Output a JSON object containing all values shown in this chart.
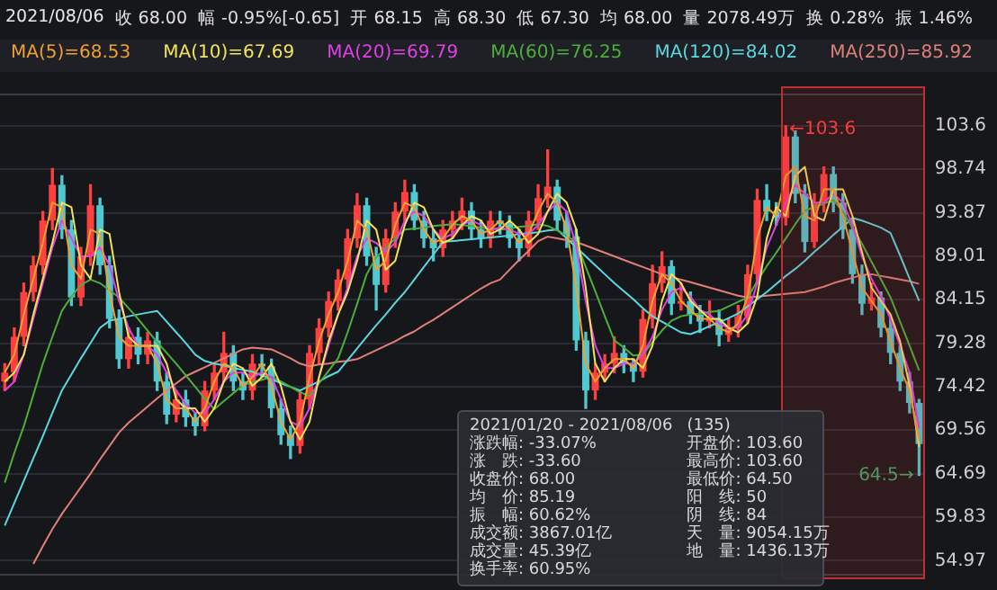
{
  "chart_data": {
    "type": "candlestick",
    "title": "2021/08/06",
    "subtitle": "收 68.00  幅 -0.95%[-0.65]  开 68.15  高 68.30  低 67.30  均 68.00  量 2078.49万  换 0.28%  振 1.46%",
    "categories": [
      null,
      null,
      null,
      null,
      null,
      null,
      null,
      null,
      null,
      null,
      null,
      null,
      null,
      null,
      null,
      null,
      null,
      null,
      null,
      null,
      null,
      null,
      null,
      null,
      null,
      null,
      null,
      null,
      null,
      null,
      null,
      null,
      null,
      null,
      null,
      null,
      null,
      null,
      null,
      null,
      null,
      null,
      null,
      null,
      null,
      null,
      null,
      null,
      null,
      null,
      null,
      null,
      null,
      null,
      null,
      null,
      null,
      null,
      null,
      null,
      null,
      null,
      null,
      null,
      null,
      null,
      null,
      null,
      null,
      null,
      null,
      null,
      null,
      null,
      null,
      null,
      null,
      null,
      null,
      null,
      null,
      null,
      null,
      null,
      null,
      null,
      null,
      null,
      null,
      null,
      null,
      null,
      null,
      null,
      null,
      null,
      null
    ],
    "ohlc": [
      [
        75,
        77,
        74,
        76
      ],
      [
        76,
        81,
        75,
        80
      ],
      [
        80,
        86,
        79,
        85
      ],
      [
        85,
        89,
        84,
        88
      ],
      [
        88,
        94,
        87,
        93
      ],
      [
        93,
        98.8,
        92,
        97
      ],
      [
        97,
        98,
        91,
        92
      ],
      [
        92,
        93,
        83.5,
        84.4
      ],
      [
        84.4,
        90,
        83.5,
        89
      ],
      [
        89,
        97,
        88,
        94.7
      ],
      [
        94.7,
        95.5,
        87,
        88
      ],
      [
        88,
        89,
        81,
        82
      ],
      [
        82,
        83,
        76.5,
        77.5
      ],
      [
        77.5,
        81,
        76.5,
        80
      ],
      [
        80,
        81,
        77,
        78
      ],
      [
        78,
        80.5,
        77,
        79.6
      ],
      [
        79.6,
        80.5,
        74,
        75
      ],
      [
        75,
        76,
        70.3,
        71.3
      ],
      [
        71.3,
        74,
        70.5,
        73
      ],
      [
        73,
        74,
        70,
        71
      ],
      [
        71,
        71.5,
        69,
        70
      ],
      [
        70,
        75,
        69.5,
        74
      ],
      [
        74,
        77,
        73,
        76
      ],
      [
        76,
        80.5,
        75,
        78.2
      ],
      [
        78.2,
        79,
        74,
        75
      ],
      [
        75,
        76,
        73,
        74
      ],
      [
        74,
        78,
        73,
        77
      ],
      [
        77,
        78,
        75.5,
        76.7
      ],
      [
        76.7,
        77.5,
        71,
        72
      ],
      [
        72,
        73,
        68,
        69
      ],
      [
        69,
        70,
        66.4,
        67.8
      ],
      [
        67.8,
        74,
        67,
        73
      ],
      [
        73,
        79,
        72,
        78.2
      ],
      [
        78.2,
        82,
        77,
        81
      ],
      [
        81,
        85,
        80,
        84
      ],
      [
        84,
        87.5,
        83,
        86.4
      ],
      [
        86.4,
        92,
        85.5,
        91
      ],
      [
        91,
        96,
        90,
        94.7
      ],
      [
        94.7,
        95.5,
        88,
        89
      ],
      [
        89,
        90,
        83,
        85.8
      ],
      [
        85.8,
        92,
        85,
        91
      ],
      [
        91,
        95,
        90,
        94
      ],
      [
        94,
        97.5,
        93,
        96.2
      ],
      [
        96.2,
        97,
        92,
        93
      ],
      [
        93,
        94,
        90,
        91
      ],
      [
        91,
        92,
        88.5,
        89.9
      ],
      [
        89.9,
        93,
        89,
        92
      ],
      [
        92,
        94,
        91,
        93
      ],
      [
        93,
        95.5,
        92,
        94.1
      ],
      [
        94.1,
        95,
        91,
        92
      ],
      [
        92,
        93,
        90,
        91
      ],
      [
        91,
        94,
        90,
        93
      ],
      [
        93,
        94,
        91.5,
        92.6
      ],
      [
        92.6,
        93.5,
        90,
        91
      ],
      [
        91,
        92,
        88.5,
        89.9
      ],
      [
        89.9,
        94,
        89,
        93
      ],
      [
        93,
        97,
        92,
        95.5
      ],
      [
        95.5,
        100.9,
        94.5,
        96.8
      ],
      [
        96.8,
        97.5,
        92,
        93
      ],
      [
        93,
        94,
        90,
        91.2
      ],
      [
        91.2,
        92,
        78.5,
        79.6
      ],
      [
        79.6,
        80.5,
        72,
        74
      ],
      [
        74,
        77,
        73,
        76
      ],
      [
        76,
        78,
        75,
        77
      ],
      [
        77,
        80,
        76,
        78.2
      ],
      [
        78.2,
        79,
        76,
        77
      ],
      [
        77,
        77.5,
        75,
        76.1
      ],
      [
        76.1,
        83,
        75.5,
        82
      ],
      [
        82,
        88,
        81,
        86
      ],
      [
        86,
        89.5,
        85,
        87.9
      ],
      [
        87.9,
        88.5,
        82.5,
        83.7
      ],
      [
        83.7,
        86,
        83,
        84
      ],
      [
        84,
        85,
        81.5,
        82.5
      ],
      [
        82.5,
        83.5,
        80.5,
        81.7
      ],
      [
        81.7,
        84,
        81,
        82
      ],
      [
        82,
        83,
        79,
        80.2
      ],
      [
        80.2,
        82,
        79.5,
        81
      ],
      [
        81,
        83.5,
        80,
        82.3
      ],
      [
        82.3,
        88,
        81.5,
        87
      ],
      [
        87,
        96.5,
        86,
        95.3
      ],
      [
        95.3,
        97,
        93,
        94
      ],
      [
        94,
        95,
        92.5,
        93.3
      ],
      [
        93.3,
        103.6,
        92.5,
        102.4
      ],
      [
        102.4,
        103,
        95,
        96
      ],
      [
        96,
        97,
        89.5,
        90.6
      ],
      [
        90.6,
        96,
        90,
        95
      ],
      [
        95,
        99,
        94,
        98.2
      ],
      [
        98.2,
        99,
        94,
        95
      ],
      [
        95,
        96,
        91,
        92
      ],
      [
        92,
        93,
        86,
        87
      ],
      [
        87,
        88,
        82.5,
        83.7
      ],
      [
        83.7,
        86,
        83,
        84.4
      ],
      [
        84.4,
        85,
        80,
        81
      ],
      [
        81,
        82,
        77,
        78.2
      ],
      [
        78.2,
        79,
        74,
        75
      ],
      [
        75,
        76,
        71.5,
        72.6
      ],
      [
        72.6,
        73,
        64.5,
        68
      ]
    ],
    "colors": [
      "#ff4040",
      "#ff4040",
      "#ff4040",
      "#ff4040",
      "#ff4040",
      "#ff4040",
      "#4fc8d0",
      "#4fc8d0",
      "#ff4040",
      "#ff4040",
      "#4fc8d0",
      "#4fc8d0",
      "#4fc8d0",
      "#ff4040",
      "#4fc8d0",
      "#ff4040",
      "#4fc8d0",
      "#4fc8d0",
      "#ff4040",
      "#4fc8d0",
      "#4fc8d0",
      "#ff4040",
      "#ff4040",
      "#ff4040",
      "#4fc8d0",
      "#4fc8d0",
      "#ff4040",
      "#4fc8d0",
      "#4fc8d0",
      "#4fc8d0",
      "#4fc8d0",
      "#ff4040",
      "#ff4040",
      "#ff4040",
      "#ff4040",
      "#ff4040",
      "#ff4040",
      "#ff4040",
      "#4fc8d0",
      "#4fc8d0",
      "#ff4040",
      "#ff4040",
      "#ff4040",
      "#4fc8d0",
      "#4fc8d0",
      "#4fc8d0",
      "#ff4040",
      "#ff4040",
      "#ff4040",
      "#4fc8d0",
      "#4fc8d0",
      "#ff4040",
      "#4fc8d0",
      "#4fc8d0",
      "#4fc8d0",
      "#ff4040",
      "#ff4040",
      "#ff4040",
      "#4fc8d0",
      "#4fc8d0",
      "#4fc8d0",
      "#4fc8d0",
      "#ff4040",
      "#ff4040",
      "#ff4040",
      "#4fc8d0",
      "#4fc8d0",
      "#ff4040",
      "#ff4040",
      "#ff4040",
      "#4fc8d0",
      "#ff4040",
      "#4fc8d0",
      "#4fc8d0",
      "#ff4040",
      "#4fc8d0",
      "#ff4040",
      "#ff4040",
      "#ff4040",
      "#ff4040",
      "#4fc8d0",
      "#4fc8d0",
      "#ff4040",
      "#4fc8d0",
      "#4fc8d0",
      "#ff4040",
      "#ff4040",
      "#4fc8d0",
      "#4fc8d0",
      "#4fc8d0",
      "#4fc8d0",
      "#ff4040",
      "#4fc8d0",
      "#4fc8d0",
      "#4fc8d0",
      "#4fc8d0",
      "#4fc8d0"
    ],
    "series": [
      {
        "type": "line",
        "name": "MA(5)=68.53",
        "color": "#f0a030",
        "values": [
          76,
          78,
          82.5,
          86.5,
          90.5,
          95,
          94.5,
          88,
          86.5,
          92,
          91.5,
          85,
          80,
          79,
          79,
          79,
          77,
          73,
          72,
          72,
          70.5,
          72,
          75,
          77,
          76.5,
          74.5,
          75.5,
          77,
          74.5,
          70.5,
          68.5,
          70.5,
          75.5,
          79.5,
          82.5,
          85,
          88.5,
          93,
          92,
          87.5,
          88.5,
          92.5,
          95,
          94.5,
          92,
          90.5,
          91,
          92.5,
          93.5,
          93,
          91.5,
          92,
          93,
          92,
          90.5,
          91.5,
          94,
          96,
          95,
          92,
          85.5,
          77,
          75,
          76.5,
          77.5,
          77.5,
          76.5,
          79,
          84,
          87,
          86,
          84,
          83,
          82,
          82,
          81,
          80.5,
          81.5,
          84.5,
          91,
          94.5,
          93.5,
          98,
          99,
          93.5,
          93,
          96.5,
          96.5,
          93.5,
          89.5,
          85.5,
          84,
          82.5,
          79.5,
          76.5,
          74,
          68.53
        ]
      },
      {
        "type": "line",
        "name": "MA(10)=67.69",
        "color": "#f2e35a",
        "values": [
          75,
          76,
          78,
          82.5,
          86.5,
          90.5,
          95,
          94.5,
          88,
          86.5,
          92,
          91.5,
          85,
          80,
          79,
          79,
          79,
          77,
          73,
          72,
          72,
          70.5,
          72,
          75,
          77,
          76.5,
          74.5,
          75.5,
          77,
          74.5,
          70.5,
          68.5,
          70.5,
          75.5,
          79.5,
          82.5,
          85,
          88.5,
          93,
          92,
          87.5,
          88.5,
          92.5,
          95,
          94.5,
          92,
          90.5,
          91,
          92.5,
          93.5,
          93,
          91.5,
          92,
          93,
          92,
          90.5,
          91.5,
          94,
          96,
          95,
          92,
          85.5,
          77,
          75,
          76.5,
          77.5,
          77.5,
          76.5,
          79,
          84,
          87,
          86,
          84,
          83,
          82,
          82,
          81,
          80.5,
          81.5,
          84.5,
          91,
          94.5,
          93.5,
          98,
          99,
          93.5,
          93,
          96.5,
          96.5,
          93.5,
          89.5,
          85.5,
          84,
          82.5,
          79.5,
          74.5,
          67.69
        ]
      },
      {
        "type": "line",
        "name": "MA(20)=69.79",
        "color": "#e040e8",
        "values": [
          74,
          75,
          78,
          82,
          86,
          90,
          93,
          91,
          89,
          89,
          90,
          88,
          84,
          81,
          79,
          79,
          78,
          76,
          74,
          72.5,
          71.5,
          71.5,
          73,
          75,
          76,
          76,
          75.5,
          76,
          75.5,
          73,
          70.5,
          70,
          72,
          75.5,
          79,
          82.5,
          85.5,
          89,
          91,
          90.5,
          89.5,
          90.5,
          93,
          94,
          93.5,
          92,
          91,
          91.5,
          92.5,
          93,
          92.5,
          92,
          92.2,
          92,
          91.5,
          91.5,
          92.5,
          94,
          95,
          94,
          90,
          84,
          79,
          76.5,
          76.5,
          77,
          77,
          78,
          80,
          83,
          85,
          85.5,
          84.5,
          83,
          82.5,
          81.5,
          81,
          81,
          82.5,
          86,
          90,
          92.5,
          95,
          97,
          96,
          95,
          95,
          96,
          95,
          92.5,
          89,
          86.5,
          84.5,
          82,
          79,
          76,
          69.79
        ]
      },
      {
        "type": "line",
        "name": "MA(60)=76.25",
        "color": "#4caf3a",
        "values": [
          63.7,
          67,
          70,
          73.5,
          77,
          80,
          82.9,
          84.5,
          85.8,
          86.4,
          86,
          85.2,
          84.4,
          83.2,
          82,
          80.7,
          79.4,
          78.2,
          77,
          75.7,
          74.4,
          73.1,
          71.9,
          72.8,
          73.7,
          74.6,
          74.9,
          75.2,
          75.5,
          75,
          74.4,
          73.8,
          73.4,
          74.8,
          76.2,
          77.6,
          80.5,
          83.7,
          87,
          88.9,
          89.9,
          91,
          92,
          92.1,
          92.2,
          92.4,
          92.5,
          92.6,
          92.5,
          92.4,
          92.2,
          92.1,
          92,
          92.1,
          92.3,
          92.4,
          92.6,
          92.4,
          91.9,
          91.3,
          90.6,
          87.8,
          85.1,
          82.3,
          79.6,
          78.8,
          77.9,
          78,
          79.4,
          80.7,
          81.8,
          82.3,
          82.5,
          82.6,
          82.8,
          82.9,
          83.4,
          83.9,
          84.4,
          86.2,
          87.9,
          89.4,
          91,
          92.6,
          94.1,
          94.5,
          94.9,
          95.3,
          94,
          92.2,
          90.4,
          88.4,
          86.4,
          84.4,
          81.7,
          79,
          76.25
        ]
      },
      {
        "type": "line",
        "name": "MA(120)=84.02",
        "color": "#5ad8e0",
        "values": [
          58.9,
          61.4,
          63.9,
          66.4,
          68.9,
          71.5,
          74,
          75.8,
          77.6,
          79.3,
          81,
          81.8,
          82,
          82.3,
          82.5,
          82.7,
          82.9,
          81.7,
          80.5,
          79.3,
          78,
          77.3,
          77,
          76.8,
          76.5,
          76.3,
          76.1,
          75.7,
          75.3,
          74.8,
          74.4,
          74,
          74.5,
          75,
          75.6,
          76.1,
          77.4,
          78.7,
          80,
          81.3,
          82.5,
          83.8,
          85,
          86.4,
          87.8,
          89.2,
          90.6,
          90.7,
          90.8,
          90.9,
          91,
          91.1,
          91.2,
          91.3,
          91.5,
          91.6,
          91.7,
          91.9,
          92,
          91,
          90,
          89,
          88,
          87,
          86,
          85.1,
          84.2,
          83.2,
          82.3,
          81.7,
          81.1,
          80.5,
          80.3,
          80.7,
          81.2,
          81.6,
          82.1,
          82.6,
          83.4,
          84.2,
          85,
          85.9,
          86.8,
          87.6,
          88.5,
          89.5,
          90.4,
          91.4,
          92.3,
          93.3,
          93,
          92.6,
          92.2,
          91.6,
          89.1,
          86.5,
          84.02
        ]
      },
      {
        "type": "line",
        "name": "MA(250)=85.92",
        "color": "#e08078",
        "values": [
          null,
          null,
          null,
          54.6,
          56.6,
          58.5,
          60.2,
          61.7,
          63.2,
          64.7,
          66.3,
          67.8,
          69.3,
          70.4,
          71.3,
          72.2,
          73.1,
          74,
          74.8,
          75.6,
          76.1,
          76.6,
          77.1,
          77.6,
          78.1,
          78.6,
          78.8,
          78.7,
          78.6,
          78.1,
          77.6,
          77,
          76.7,
          76.9,
          77,
          77.2,
          77.3,
          77.5,
          78,
          78.5,
          79,
          79.5,
          80.1,
          80.6,
          81.3,
          81.9,
          82.6,
          83.3,
          84,
          84.7,
          85.4,
          86,
          86.4,
          87.5,
          88.6,
          89.6,
          90.7,
          91.2,
          91,
          90.8,
          90.6,
          90.2,
          89.8,
          89.4,
          89,
          88.6,
          88.2,
          87.8,
          87.4,
          87,
          86.7,
          86.4,
          86.1,
          85.8,
          85.5,
          85.2,
          84.9,
          84.6,
          84.4,
          84.5,
          84.6,
          84.7,
          84.8,
          84.9,
          85,
          85.3,
          85.6,
          86,
          86.3,
          86.6,
          86.9,
          87,
          86.8,
          86.6,
          86.4,
          86.2,
          85.92
        ]
      }
    ],
    "ylim": [
      53.3,
      107.2
    ],
    "yticks": [
      103.6,
      98.74,
      93.87,
      89.01,
      84.15,
      79.28,
      74.42,
      69.56,
      64.69,
      59.83,
      54.97
    ],
    "grid": "y",
    "tick_labels": "y",
    "legend": "top left",
    "annotations": [
      "←103.6",
      "64.5→",
      "2021/01/20 - 2021/08/06",
      "(135)",
      "涨跌幅: -33.07%",
      "开盘价: 103.60",
      "涨　跌: -33.60",
      "最高价: 103.60",
      "收盘价: 68.00",
      "最低价: 64.50",
      "均　价: 85.19",
      "阳　线: 50",
      "振　幅: 60.62%",
      "阴　线: 84",
      "成交额: 3867.01亿",
      "天　量: 9054.15万",
      "成交量: 45.39亿",
      "地　量: 1436.13万",
      "换手率: 60.95%"
    ]
  }
}
